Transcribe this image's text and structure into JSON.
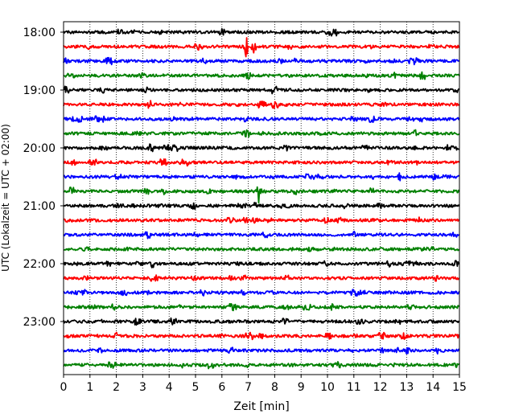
{
  "chart_data": {
    "type": "line",
    "xlabel": "Zeit  [min]",
    "ylabel": "UTC (Lokalzeit = UTC + 02:00)",
    "xlim": [
      0,
      15
    ],
    "x_ticks": [
      "0",
      "1",
      "2",
      "3",
      "4",
      "5",
      "6",
      "7",
      "8",
      "9",
      "10",
      "11",
      "12",
      "13",
      "14",
      "15"
    ],
    "y_tick_labels": [
      "18:00",
      "19:00",
      "20:00",
      "21:00",
      "22:00",
      "23:00"
    ],
    "grid": "vertical dotted",
    "line_colors": [
      "#000000",
      "#ff0000",
      "#0000ff",
      "#008000"
    ],
    "rows": [
      {
        "start": "18:00",
        "events": []
      },
      {
        "start": "18:15",
        "events": [
          [
            6.9,
            1.0
          ],
          [
            7.2,
            0.8
          ]
        ]
      },
      {
        "start": "18:30",
        "events": []
      },
      {
        "start": "18:45",
        "events": [
          [
            7.0,
            0.5
          ]
        ]
      },
      {
        "start": "19:00",
        "events": []
      },
      {
        "start": "19:15",
        "events": []
      },
      {
        "start": "19:30",
        "events": []
      },
      {
        "start": "19:45",
        "events": []
      },
      {
        "start": "20:00",
        "events": []
      },
      {
        "start": "20:15",
        "events": [
          [
            4.7,
            0.3
          ]
        ]
      },
      {
        "start": "20:30",
        "events": []
      },
      {
        "start": "20:45",
        "events": [
          [
            5.5,
            0.5
          ],
          [
            7.4,
            1.0
          ]
        ]
      },
      {
        "start": "21:00",
        "events": []
      },
      {
        "start": "21:15",
        "events": [
          [
            13.5,
            0.3
          ]
        ]
      },
      {
        "start": "21:30",
        "events": []
      },
      {
        "start": "21:45",
        "events": []
      },
      {
        "start": "22:00",
        "events": []
      },
      {
        "start": "22:15",
        "events": []
      },
      {
        "start": "22:30",
        "events": [
          [
            0.8,
            0.4
          ],
          [
            6.8,
            0.4
          ]
        ]
      },
      {
        "start": "22:45",
        "events": []
      },
      {
        "start": "23:00",
        "events": []
      },
      {
        "start": "23:15",
        "events": []
      },
      {
        "start": "23:30",
        "events": []
      },
      {
        "start": "23:45",
        "events": []
      }
    ]
  }
}
